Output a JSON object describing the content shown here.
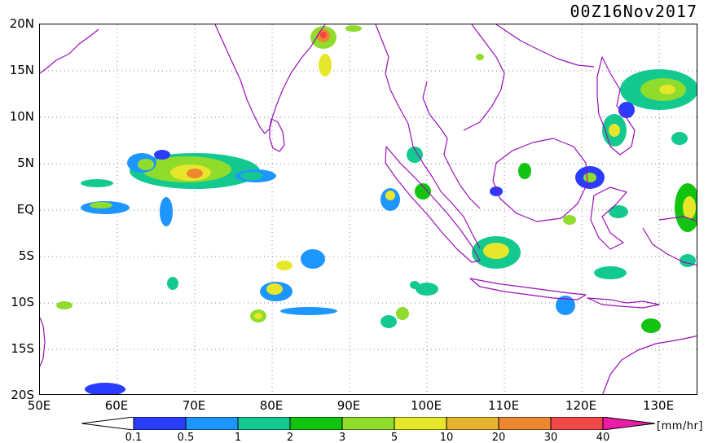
{
  "title": "00Z16Nov2017",
  "lat_labels": [
    "20N",
    "15N",
    "10N",
    "5N",
    "EQ",
    "5S",
    "10S",
    "15S",
    "20S"
  ],
  "lon_labels": [
    "50E",
    "60E",
    "70E",
    "80E",
    "90E",
    "100E",
    "110E",
    "120E",
    "130E"
  ],
  "colorbar": {
    "ticks": [
      "0.1",
      "0.5",
      "1",
      "2",
      "3",
      "5",
      "10",
      "20",
      "30",
      "40"
    ],
    "units": "[mm/hr]",
    "colors": [
      "#ffffff",
      "#2a3cff",
      "#1e96ff",
      "#13c98f",
      "#12c40f",
      "#8fdc2c",
      "#e6e62a",
      "#e8b430",
      "#ee8830",
      "#f04848",
      "#ee1aa8"
    ]
  },
  "colors": {
    "coastline": "#9a10b8",
    "grid": "#888888"
  }
}
